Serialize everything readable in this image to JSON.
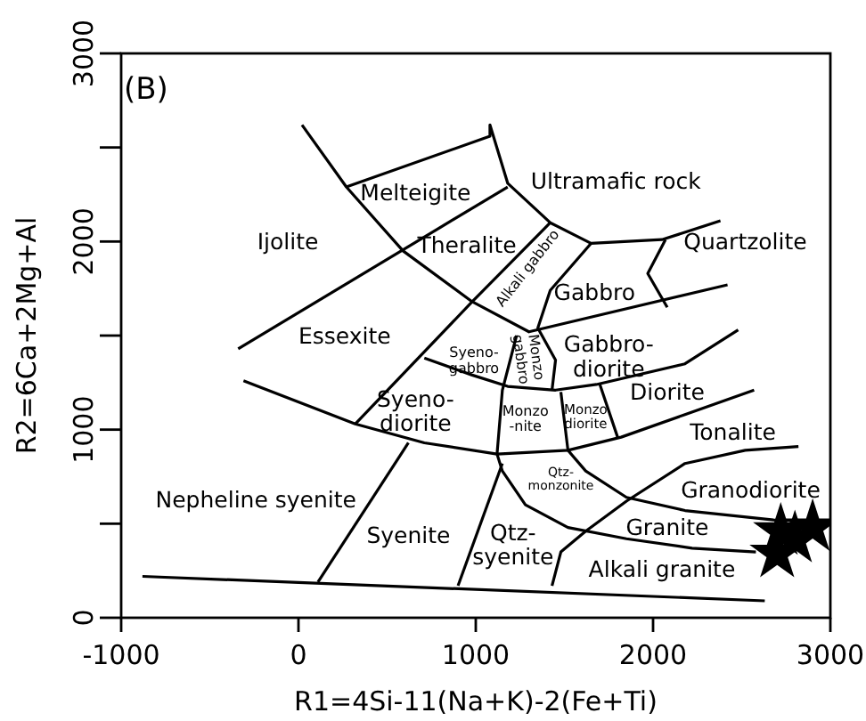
{
  "chart_data": {
    "type": "scatter",
    "xlabel": "R1=4Si-11(Na+K)-2(Fe+Ti)",
    "ylabel": "R2=6Ca+2Mg+Al",
    "xlim": [
      -1000,
      3000
    ],
    "ylim": [
      0,
      3000
    ],
    "xticks": [
      -1000,
      0,
      1000,
      2000,
      3000
    ],
    "yticks": [
      0,
      {
        "value": 500,
        "label": null
      },
      1000,
      {
        "value": 1500,
        "label": null
      },
      2000,
      {
        "value": 2500,
        "label": null
      },
      3000
    ],
    "grid": false,
    "series": [
      {
        "type": "line",
        "color": "#000000",
        "x": [
          20,
          270,
          590,
          980,
          1300,
          2420
        ],
        "values": [
          2620,
          2290,
          1950,
          1680,
          1520,
          1770
        ]
      },
      {
        "type": "line",
        "color": "#000000",
        "x": [
          270,
          1080,
          1080,
          1180,
          1420,
          1650,
          2050,
          2380
        ],
        "values": [
          2290,
          2560,
          2620,
          2310,
          2100,
          1990,
          2010,
          2110
        ]
      },
      {
        "type": "line",
        "color": "#000000",
        "x": [
          -340,
          1180
        ],
        "values": [
          1430,
          2290
        ]
      },
      {
        "type": "line",
        "color": "#000000",
        "x": [
          1420,
          980,
          320
        ],
        "values": [
          2100,
          1680,
          1030
        ]
      },
      {
        "type": "line",
        "color": "#000000",
        "x": [
          1650,
          1420,
          1350,
          1450,
          1430
        ],
        "values": [
          1990,
          1740,
          1540,
          1370,
          1210
        ]
      },
      {
        "type": "line",
        "color": "#000000",
        "x": [
          710,
          980,
          1180,
          1450,
          1680,
          2180,
          2480
        ],
        "values": [
          1380,
          1290,
          1230,
          1210,
          1240,
          1350,
          1530
        ]
      },
      {
        "type": "line",
        "color": "#000000",
        "x": [
          -310,
          320,
          710,
          1120,
          1520,
          1820,
          2180,
          2570
        ],
        "values": [
          1260,
          1030,
          930,
          870,
          890,
          960,
          1080,
          1210
        ]
      },
      {
        "type": "line",
        "color": "#000000",
        "x": [
          1700,
          1800
        ],
        "values": [
          1240,
          960
        ]
      },
      {
        "type": "line",
        "color": "#000000",
        "x": [
          1480,
          1520,
          1620,
          1850,
          2180,
          2680,
          2980
        ],
        "values": [
          1200,
          890,
          780,
          640,
          570,
          520,
          510
        ]
      },
      {
        "type": "line",
        "color": "#000000",
        "x": [
          1230,
          1150,
          1120,
          1150,
          1280,
          1520,
          1850,
          2220,
          2580
        ],
        "values": [
          1500,
          1210,
          870,
          780,
          600,
          480,
          420,
          370,
          350
        ]
      },
      {
        "type": "line",
        "color": "#000000",
        "x": [
          1150,
          900
        ],
        "values": [
          820,
          170
        ]
      },
      {
        "type": "line",
        "color": "#000000",
        "x": [
          620,
          110
        ],
        "values": [
          930,
          190
        ]
      },
      {
        "type": "line",
        "color": "#000000",
        "x": [
          1430,
          1480,
          1620,
          1850,
          2180,
          2520,
          2820
        ],
        "values": [
          170,
          350,
          460,
          620,
          820,
          890,
          910
        ]
      },
      {
        "type": "line",
        "color": "#000000",
        "x": [
          -880,
          2630
        ],
        "values": [
          220,
          90
        ]
      },
      {
        "type": "line",
        "color": "#000000",
        "x": [
          2070,
          1970,
          2080
        ],
        "values": [
          2010,
          1830,
          1650
        ]
      },
      {
        "marker": "star",
        "color": "#000000",
        "x": [
          2700,
          2720,
          2800,
          2900
        ],
        "values": [
          340,
          460,
          420,
          480
        ]
      }
    ],
    "annotations": [
      "(B)",
      "Melteigite",
      "Ultramafic rock",
      "Ijolite",
      "Theralite",
      "Quartzolite",
      "Alkali gabbro",
      "Gabbro",
      "Essexite",
      "Syeno-\ngabbro",
      "Monzo\ngabbro",
      "Gabbro-\ndiorite",
      "Diorite",
      "Syeno-\ndiorite",
      "Monzo\n-nite",
      "Monzo\ndiorite",
      "Tonalite",
      "Qtz-\nmonzonite",
      "Nepheline syenite",
      "Granodiorite",
      "Syenite",
      "Granite",
      "Qtz-\nsyenite",
      "Alkali granite"
    ]
  }
}
